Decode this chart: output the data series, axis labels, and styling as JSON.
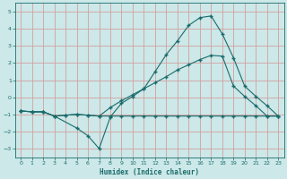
{
  "xlabel": "Humidex (Indice chaleur)",
  "bg_color": "#cce8e8",
  "grid_color": "#d4a0a0",
  "line_color": "#1a6b6b",
  "xlim": [
    -0.5,
    23.5
  ],
  "ylim": [
    -3.5,
    5.5
  ],
  "xticks": [
    0,
    1,
    2,
    3,
    4,
    5,
    6,
    7,
    8,
    9,
    10,
    11,
    12,
    13,
    14,
    15,
    16,
    17,
    18,
    19,
    20,
    21,
    22,
    23
  ],
  "yticks": [
    -3,
    -2,
    -1,
    0,
    1,
    2,
    3,
    4,
    5
  ],
  "line_wave_x": [
    0,
    1,
    2,
    3,
    5,
    6,
    7,
    8,
    9,
    10,
    11,
    12,
    13,
    14,
    15,
    16,
    17,
    18,
    19,
    20,
    21,
    22,
    23
  ],
  "line_wave_y": [
    -0.8,
    -0.85,
    -0.85,
    -1.1,
    -1.8,
    -2.25,
    -3.0,
    -1.15,
    -0.35,
    0.05,
    0.5,
    1.5,
    2.5,
    3.3,
    4.2,
    4.65,
    4.75,
    3.7,
    2.3,
    0.65,
    0.05,
    -0.5,
    -1.1
  ],
  "line_trend_x": [
    0,
    1,
    2,
    3,
    4,
    5,
    6,
    7,
    8,
    9,
    10,
    11,
    12,
    13,
    14,
    15,
    16,
    17,
    18,
    19,
    20,
    21,
    22,
    23
  ],
  "line_trend_y": [
    -0.8,
    -0.85,
    -0.85,
    -1.1,
    -1.05,
    -1.0,
    -1.05,
    -1.1,
    -0.6,
    -0.2,
    0.15,
    0.5,
    0.85,
    1.2,
    1.6,
    1.9,
    2.2,
    2.45,
    2.4,
    0.65,
    0.05,
    -0.5,
    -1.1,
    -1.1
  ],
  "line_flat_x": [
    0,
    1,
    2,
    3,
    4,
    5,
    6,
    7,
    8,
    9,
    10,
    11,
    12,
    13,
    14,
    15,
    16,
    17,
    18,
    19,
    20,
    21,
    22,
    23
  ],
  "line_flat_y": [
    -0.8,
    -0.85,
    -0.85,
    -1.1,
    -1.05,
    -1.0,
    -1.05,
    -1.1,
    -1.1,
    -1.1,
    -1.1,
    -1.1,
    -1.1,
    -1.1,
    -1.1,
    -1.1,
    -1.1,
    -1.1,
    -1.1,
    -1.1,
    -1.1,
    -1.1,
    -1.1,
    -1.1
  ],
  "marker": "+"
}
